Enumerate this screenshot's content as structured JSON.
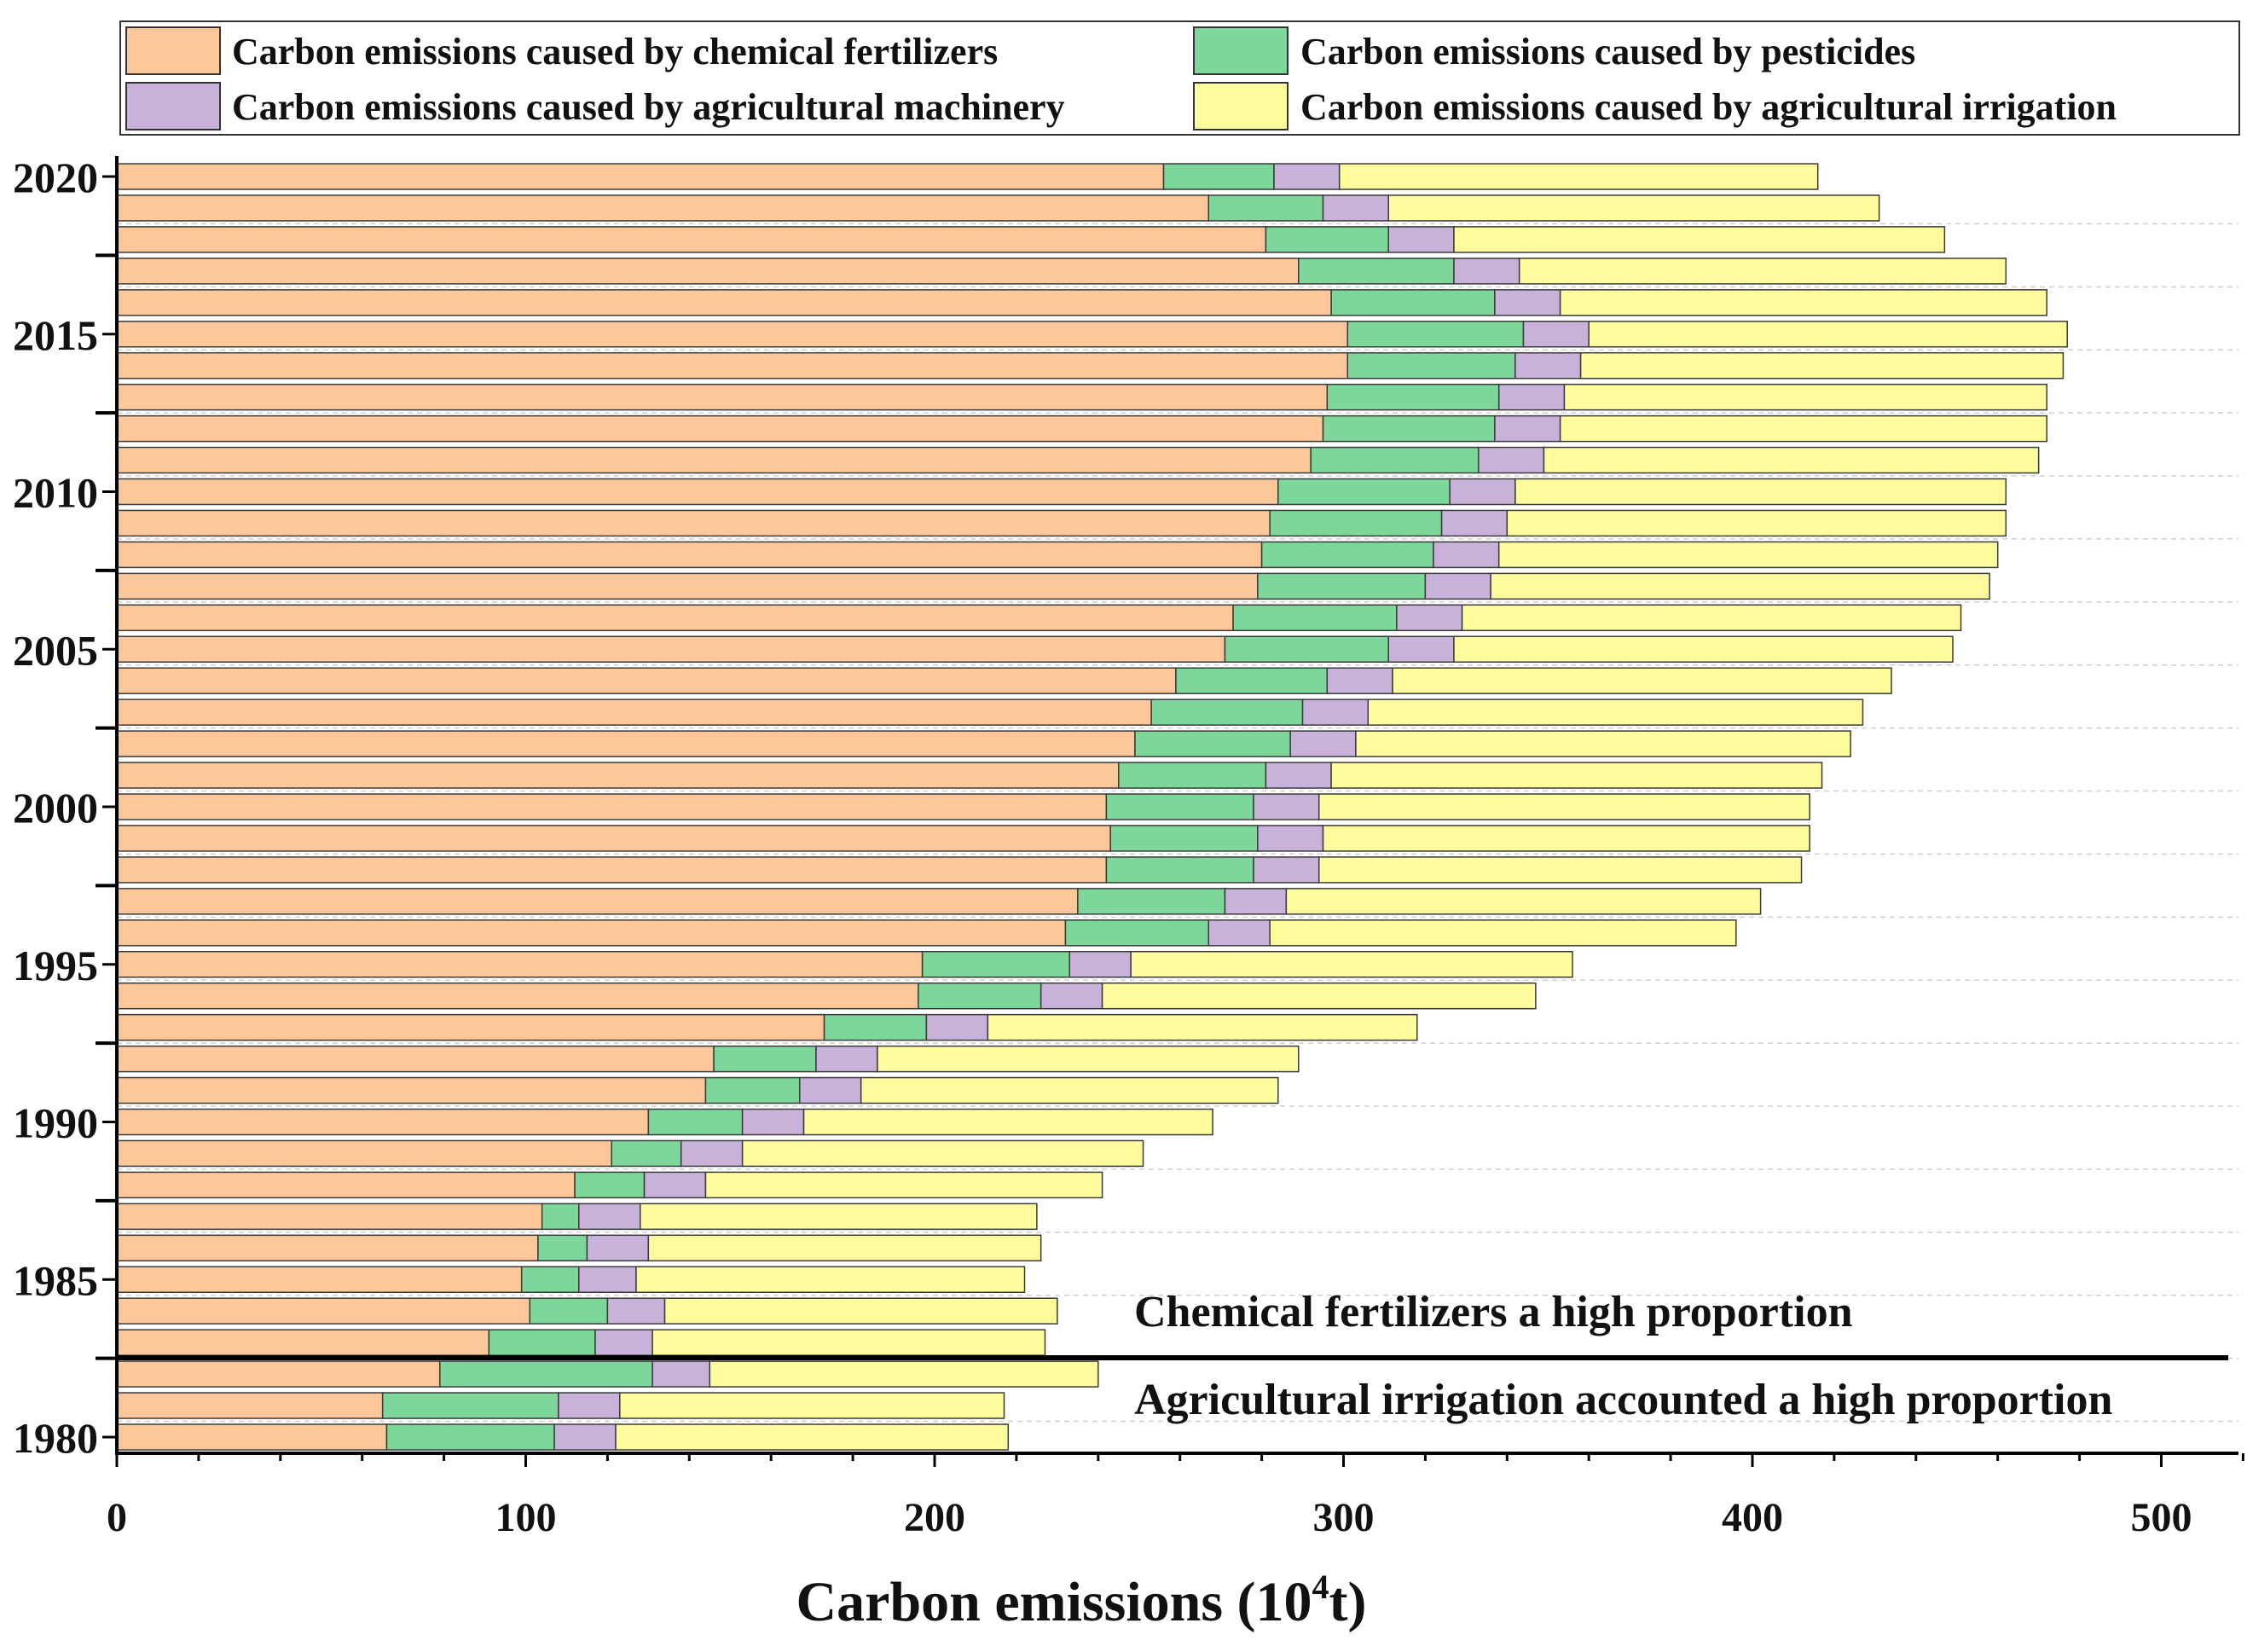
{
  "chart_data": {
    "type": "bar",
    "orientation": "horizontal",
    "stacked": true,
    "xlabel_main": "Carbon emissions (10",
    "xlabel_sup": "4",
    "xlabel_end": "t)",
    "xlim": [
      0,
      520
    ],
    "xticks": [
      0,
      100,
      200,
      300,
      400,
      500
    ],
    "ytick_labels": [
      "2020",
      "2015",
      "2010",
      "2005",
      "2000",
      "1995",
      "1990",
      "1985",
      "1980"
    ],
    "legend_position": "top",
    "grid": "dashed horizontal at 2-year intervals",
    "years": [
      1980,
      1981,
      1982,
      1983,
      1984,
      1985,
      1986,
      1987,
      1988,
      1989,
      1990,
      1991,
      1992,
      1993,
      1994,
      1995,
      1996,
      1997,
      1998,
      1999,
      2000,
      2001,
      2002,
      2003,
      2004,
      2005,
      2006,
      2007,
      2008,
      2009,
      2010,
      2011,
      2012,
      2013,
      2014,
      2015,
      2016,
      2017,
      2018,
      2019,
      2020
    ],
    "series": [
      {
        "name": "Carbon emissions caused by chemical fertilizers",
        "color": "#FDC79A",
        "values": [
          66,
          65,
          79,
          91,
          101,
          99,
          103,
          104,
          112,
          121,
          130,
          144,
          146,
          173,
          196,
          197,
          232,
          235,
          242,
          243,
          242,
          245,
          249,
          253,
          259,
          271,
          273,
          279,
          280,
          282,
          284,
          292,
          295,
          296,
          301,
          301,
          297,
          289,
          281,
          267,
          256
        ]
      },
      {
        "name": "Carbon emissions caused by pesticides",
        "color": "#7DD69A",
        "values": [
          41,
          43,
          52,
          26,
          19,
          14,
          12,
          9,
          17,
          17,
          23,
          23,
          25,
          25,
          30,
          36,
          35,
          36,
          36,
          36,
          36,
          36,
          38,
          37,
          37,
          40,
          40,
          41,
          42,
          42,
          42,
          41,
          42,
          42,
          41,
          43,
          40,
          38,
          30,
          28,
          27
        ]
      },
      {
        "name": "Carbon emissions caused by agricultural machinery",
        "color": "#C9B2DA",
        "values": [
          15,
          15,
          14,
          14,
          14,
          14,
          15,
          15,
          15,
          15,
          15,
          15,
          15,
          15,
          15,
          15,
          15,
          15,
          16,
          16,
          16,
          16,
          16,
          16,
          16,
          16,
          16,
          16,
          16,
          16,
          16,
          16,
          16,
          16,
          16,
          16,
          16,
          16,
          16,
          16,
          16
        ]
      },
      {
        "name": "Carbon emissions caused by agricultural irrigation",
        "color": "#FFFC9E",
        "values": [
          96,
          94,
          95,
          96,
          96,
          95,
          96,
          97,
          97,
          98,
          100,
          102,
          103,
          105,
          106,
          108,
          114,
          116,
          118,
          119,
          120,
          120,
          121,
          121,
          122,
          122,
          122,
          122,
          122,
          122,
          120,
          121,
          119,
          118,
          118,
          117,
          119,
          119,
          120,
          120,
          117
        ]
      }
    ],
    "annotations": [
      "Chemical fertilizers a high proportion",
      "Agricultural irrigation accounted a high proportion"
    ]
  }
}
